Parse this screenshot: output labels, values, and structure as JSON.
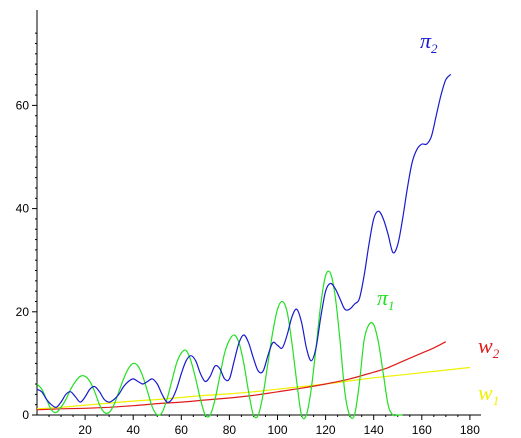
{
  "chart_data": {
    "type": "line",
    "title": "",
    "xlabel": "",
    "ylabel": "",
    "xlim": [
      0,
      180
    ],
    "ylim": [
      0,
      75
    ],
    "grid": false,
    "x_ticks": [
      20,
      40,
      60,
      80,
      100,
      120,
      140,
      160,
      180
    ],
    "x_tick_labels": [
      "20",
      "40",
      "60",
      "80",
      "100",
      "120",
      "140",
      "160",
      "180"
    ],
    "y_ticks": [
      0,
      20,
      40,
      60
    ],
    "y_tick_labels": [
      "0",
      "20",
      "40",
      "60"
    ],
    "series": [
      {
        "name": "π2",
        "label_main": "π",
        "label_sub": "2",
        "color": "#1a1ad0",
        "x": [
          0,
          2,
          4,
          6,
          8,
          10,
          12,
          14,
          16,
          18,
          20,
          22,
          24,
          26,
          28,
          30,
          32,
          34,
          36,
          38,
          40,
          42,
          44,
          46,
          48,
          50,
          52,
          54,
          56,
          58,
          60,
          62,
          64,
          66,
          68,
          70,
          72,
          74,
          76,
          78,
          80,
          82,
          84,
          86,
          88,
          90,
          92,
          94,
          96,
          98,
          100,
          102,
          104,
          106,
          108,
          110,
          112,
          114,
          116,
          118,
          120,
          122,
          124,
          126,
          128,
          130,
          132,
          134,
          136,
          138,
          140,
          142,
          144,
          146,
          148,
          150,
          152,
          154,
          156,
          158,
          160,
          162,
          164,
          166,
          168,
          170,
          172
        ],
        "values": [
          5,
          4.5,
          3,
          2,
          1.5,
          2.5,
          4,
          4.5,
          3.5,
          2.5,
          3.5,
          5,
          5.5,
          4.5,
          3,
          2.5,
          3,
          4,
          5.5,
          6.5,
          7,
          6.5,
          6,
          6.5,
          7,
          6,
          4,
          2.5,
          3,
          5,
          8,
          10.5,
          11.5,
          10.5,
          8,
          6.5,
          7.5,
          9.5,
          9,
          7,
          7,
          10.5,
          14,
          15.5,
          14,
          11,
          8.5,
          8.5,
          11.5,
          14,
          13.5,
          13,
          15.5,
          19,
          20.5,
          18,
          13,
          10.5,
          13,
          19,
          24,
          25.5,
          24.5,
          22.5,
          20.5,
          20.5,
          21.5,
          22.5,
          27,
          33,
          38,
          39.5,
          38,
          35,
          31.5,
          33,
          38,
          44,
          49,
          51.5,
          52.5,
          52.5,
          54,
          58,
          62,
          65,
          66
        ]
      },
      {
        "name": "π1",
        "label_main": "π",
        "label_sub": "1",
        "color": "#22e022",
        "x": [
          0,
          2,
          4,
          6,
          8,
          10,
          12,
          14,
          16,
          18,
          20,
          22,
          24,
          26,
          28,
          30,
          32,
          34,
          36,
          38,
          40,
          42,
          44,
          46,
          48,
          50,
          52,
          54,
          56,
          58,
          60,
          62,
          64,
          66,
          68,
          70,
          72,
          74,
          76,
          78,
          80,
          82,
          84,
          86,
          88,
          90,
          92,
          94,
          96,
          98,
          100,
          102,
          104,
          106,
          108,
          110,
          112,
          114,
          116,
          118,
          120,
          122,
          124,
          126,
          128,
          130,
          132,
          134,
          136,
          138,
          140,
          142,
          144,
          146,
          148,
          150,
          152
        ],
        "values": [
          6,
          5,
          3,
          1,
          0.5,
          1.5,
          3,
          5,
          6.5,
          7.5,
          7.5,
          6.5,
          4.5,
          2,
          0.5,
          0.5,
          2,
          4.5,
          7,
          9,
          10,
          9.5,
          7.5,
          4.5,
          1.5,
          0,
          0.5,
          3,
          6.5,
          10,
          12,
          12.5,
          10.5,
          7,
          3,
          0,
          0,
          3,
          7.5,
          12,
          14.5,
          15.5,
          14,
          10,
          4.5,
          0,
          0,
          4,
          10,
          16,
          20.5,
          22,
          20,
          14,
          6.5,
          0,
          0,
          5,
          13,
          21.5,
          27,
          27.5,
          23,
          14.5,
          4.5,
          0,
          0,
          6,
          14.5,
          17.5,
          17.5,
          14,
          8,
          2,
          0,
          0,
          0
        ]
      },
      {
        "name": "w2",
        "label_main": "w",
        "label_sub": "2",
        "color": "#e01a1a",
        "x": [
          0,
          10,
          20,
          30,
          40,
          50,
          60,
          70,
          80,
          90,
          100,
          110,
          120,
          130,
          140,
          145,
          150,
          155,
          160,
          165,
          170
        ],
        "values": [
          1,
          1.2,
          1.3,
          1.5,
          1.8,
          2.2,
          2.5,
          2.9,
          3.3,
          3.8,
          4.5,
          5.2,
          6,
          7,
          8.3,
          9,
          10,
          11,
          12,
          13,
          14.2
        ]
      },
      {
        "name": "w1",
        "label_main": "w",
        "label_sub": "1",
        "color": "#f0f000",
        "x": [
          0,
          10,
          20,
          30,
          40,
          50,
          60,
          70,
          80,
          90,
          100,
          110,
          120,
          130,
          140,
          150,
          160,
          170,
          180
        ],
        "values": [
          1.2,
          1.5,
          1.9,
          2.3,
          2.7,
          3,
          3.4,
          3.8,
          4.1,
          4.5,
          5,
          5.5,
          6,
          6.6,
          7.2,
          7.7,
          8.2,
          8.7,
          9.2
        ]
      }
    ]
  }
}
